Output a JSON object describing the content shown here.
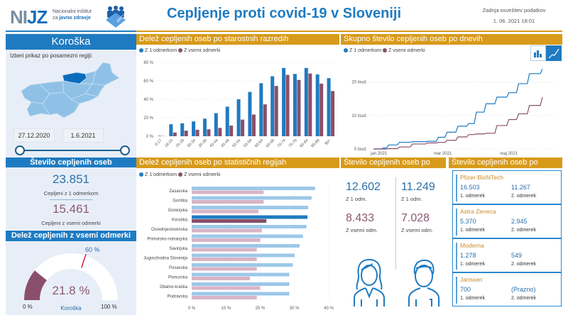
{
  "header": {
    "logo_main_a": "NI",
    "logo_main_b": "JZ",
    "logo_sub_1": "Nacionalni inštitut",
    "logo_sub_2a": "za",
    "logo_sub_2b": "javno zdravje",
    "logo_badge": "eRCO",
    "title": "Cepljenje proti covid-19 v Sloveniji",
    "update_label": "Zadnja osvežitev podatkov",
    "update_value": "1. 06. 2021 18:01"
  },
  "colors": {
    "blue": "#1f7bc1",
    "pink": "#8a4f6a",
    "gold": "#d89a1a",
    "light_blue": "#9cc8e8",
    "light_pink": "#d8b4c6"
  },
  "region_panel": {
    "title": "Koroška",
    "hint": "Izberi prikaz po posamezni regiji:",
    "date_from": "27.12.2020",
    "date_to": "1.6.2021",
    "selected_region": "Koroška"
  },
  "counts": {
    "title": "Število cepljenih oseb",
    "one_dose_value": "23.851",
    "one_dose_label": "Cepljeni z 1 odmerkom",
    "all_doses_value": "15.461",
    "all_doses_label": "Cepljeni z vsemi odmerki"
  },
  "gauge": {
    "title": "Delež cepljenih z vsemi odmerki",
    "value_label": "21.8 %",
    "value": 21.8,
    "target_label": "60 %",
    "target": 60,
    "min_label": "0 %",
    "max_label": "100 %",
    "region": "Koroška"
  },
  "legend": {
    "one": "Z 1 odmerkom",
    "all": "Z vsemi odmerki"
  },
  "line_buttons": {
    "bar_icon": "bar-chart-icon",
    "line_icon": "line-chart-icon"
  },
  "sex": {
    "title": "Število cepljenih oseb po spolu",
    "female_one": "12.602",
    "female_one_label": "Z 1 odm.",
    "female_all": "8.433",
    "female_all_label": "Z vsemi odm.",
    "male_one": "11.249",
    "male_one_label": "Z 1 odm.",
    "male_all": "7.028",
    "male_all_label": "Z vsemi odm."
  },
  "vaccines": {
    "title": "Število cepljenih oseb po cepivu",
    "items": [
      {
        "name": "Pfizer-BioNTech",
        "dose1": "16.503",
        "dose1_label": "1. odmerek",
        "dose2": "11.267",
        "dose2_label": "2. odmerek"
      },
      {
        "name": "Astra Zeneca",
        "dose1": "5.370",
        "dose1_label": "1. odmerek",
        "dose2": "2.945",
        "dose2_label": "2. odmerek"
      },
      {
        "name": "Moderna",
        "dose1": "1.278",
        "dose1_label": "1. odmerek",
        "dose2": "549",
        "dose2_label": "2. odmerek"
      },
      {
        "name": "Janssen",
        "dose1": "700",
        "dose1_label": "1. odmerek",
        "dose2": "(Prazno)",
        "dose2_label": "2. odmerek"
      }
    ]
  },
  "chart_data": [
    {
      "type": "bar",
      "title": "Delež cepljenih oseb po starostnih razredih",
      "categories": [
        "0-17",
        "18-24",
        "25-29",
        "30-34",
        "35-39",
        "40-44",
        "45-49",
        "50-54",
        "55-59",
        "60-64",
        "65-69",
        "70-74",
        "75-79",
        "80-84",
        "85-89",
        "90+"
      ],
      "series": [
        {
          "name": "Z 1 odmerkom",
          "values": [
            0.5,
            13,
            14,
            16,
            19,
            25,
            32,
            40,
            48,
            57.5,
            65,
            74,
            67.5,
            74,
            67,
            63
          ]
        },
        {
          "name": "Z vsemi odmerki",
          "values": [
            0.2,
            4,
            6,
            7,
            7.5,
            9,
            11.5,
            18,
            23.5,
            34.5,
            54.5,
            66.5,
            61,
            68,
            57,
            49
          ]
        }
      ],
      "yticks": [
        "0 %",
        "20 %",
        "40 %",
        "60 %",
        "80 %"
      ],
      "ylim": [
        0,
        80
      ],
      "grid": true,
      "legend": "top-left"
    },
    {
      "type": "line",
      "title": "Skupno število cepljenih oseb po dnevih",
      "x": [
        "2020-12-27",
        "2021-01-05",
        "2021-01-10",
        "2021-01-20",
        "2021-02-01",
        "2021-02-15",
        "2021-02-25",
        "2021-03-05",
        "2021-03-15",
        "2021-03-25",
        "2021-04-01",
        "2021-04-10",
        "2021-04-20",
        "2021-05-01",
        "2021-05-10",
        "2021-05-20",
        "2021-06-01"
      ],
      "series": [
        {
          "name": "Z 1 odmerkom",
          "values": [
            0,
            300,
            1200,
            2000,
            2200,
            2300,
            3500,
            5000,
            6800,
            7600,
            11000,
            13500,
            15500,
            16800,
            19500,
            22500,
            23851
          ]
        },
        {
          "name": "Z vsemi odmerki",
          "values": [
            0,
            0,
            100,
            600,
            1500,
            1800,
            2000,
            2600,
            3600,
            4300,
            4500,
            4700,
            7000,
            8800,
            10500,
            13000,
            15461
          ]
        }
      ],
      "xticks": [
        "jan 2021",
        "mar 2021",
        "maj 2021"
      ],
      "yticks": [
        "0 tisoč",
        "10 tisoč",
        "20 tisoč"
      ],
      "ylim": [
        0,
        25000
      ],
      "grid": true,
      "legend": "top-left"
    },
    {
      "type": "bar",
      "orientation": "horizontal",
      "title": "Delež cepljenih oseb po statističnih regijah",
      "categories": [
        "Zasavska",
        "Goriška",
        "Gorenjska",
        "Koroška",
        "Osrednjeslovenska",
        "Primorsko-notranjska",
        "Savinjska",
        "Jugovzhodna Slovenija",
        "Posavska",
        "Pomurska",
        "Obalno-kraška",
        "Podravska"
      ],
      "highlight": "Koroška",
      "series": [
        {
          "name": "Z 1 odmerkom",
          "values": [
            36,
            35,
            34,
            33.8,
            33.5,
            32.5,
            31.5,
            30,
            29.5,
            28.5,
            28.5,
            28.5
          ]
        },
        {
          "name": "Z vsemi odmerki",
          "values": [
            21,
            21,
            19.5,
            21.8,
            20.5,
            20,
            19,
            19,
            19,
            17,
            20,
            19
          ]
        }
      ],
      "xticks": [
        "0 %",
        "10 %",
        "20 %",
        "30 %",
        "40 %"
      ],
      "xlim": [
        0,
        40
      ],
      "grid": true,
      "legend": "top-left"
    }
  ]
}
